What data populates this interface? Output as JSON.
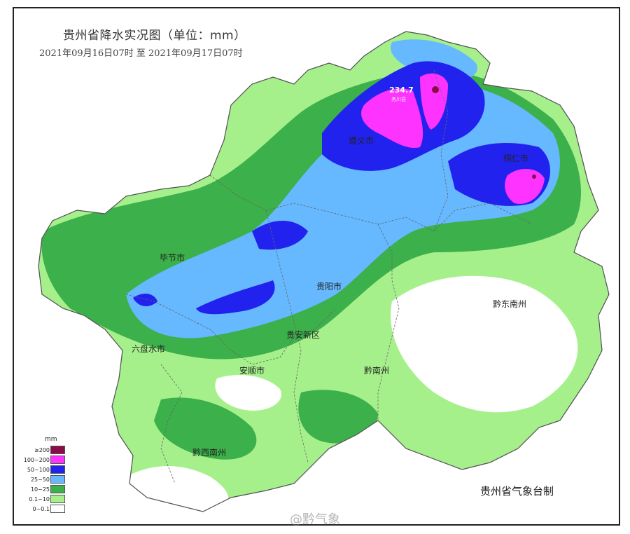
{
  "map": {
    "title": "贵州省降水实况图（单位：mm）",
    "period": "2021年09月16日07时  至  2021年09月17日07时",
    "credit": "贵州省气象台制",
    "watermark": "@黔气象",
    "max_value": "234.7",
    "max_station": "务川县",
    "cities": [
      {
        "name": "遵义市"
      },
      {
        "name": "铜仁市"
      },
      {
        "name": "毕节市"
      },
      {
        "name": "贵阳市"
      },
      {
        "name": "黔东南州"
      },
      {
        "name": "贵安新区"
      },
      {
        "name": "六盘水市"
      },
      {
        "name": "安顺市"
      },
      {
        "name": "黔南州"
      },
      {
        "name": "黔西南州"
      }
    ]
  },
  "legend": {
    "unit": "mm",
    "items": [
      {
        "label": "≥200",
        "color": "#8b0a4a"
      },
      {
        "label": "100~200",
        "color": "#ff33ff"
      },
      {
        "label": "50~100",
        "color": "#2222ee"
      },
      {
        "label": "25~50",
        "color": "#66b8ff"
      },
      {
        "label": "10~25",
        "color": "#3cb04a"
      },
      {
        "label": "0.1~10",
        "color": "#a6f08c"
      },
      {
        "label": "0~0.1",
        "color": "#ffffff"
      }
    ]
  }
}
